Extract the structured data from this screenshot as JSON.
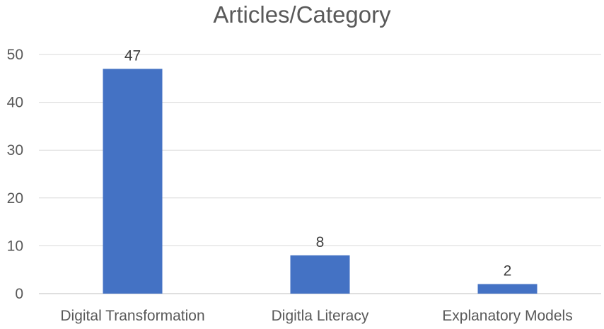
{
  "chart_data": {
    "type": "bar",
    "title": "Articles/Category",
    "categories": [
      "Digital Transformation",
      "Digitla Literacy",
      "Explanatory Models"
    ],
    "values": [
      47,
      8,
      2
    ],
    "data_labels": [
      "47",
      "8",
      "2"
    ],
    "ylim": [
      0,
      50
    ],
    "yticks": [
      0,
      10,
      20,
      30,
      40,
      50
    ],
    "xlabel": "",
    "ylabel": "",
    "grid": true,
    "legend": "none",
    "bar_color": "#4472c4"
  }
}
